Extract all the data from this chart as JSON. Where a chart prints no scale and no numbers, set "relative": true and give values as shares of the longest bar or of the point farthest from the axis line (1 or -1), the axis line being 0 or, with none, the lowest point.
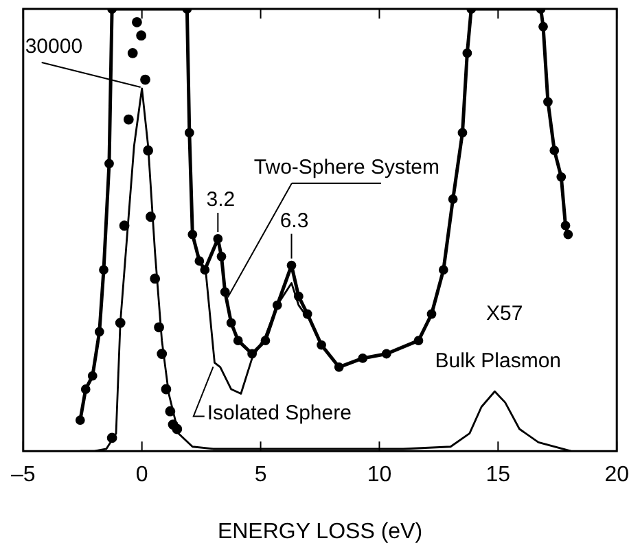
{
  "chart_data": {
    "type": "line",
    "xlabel": "ENERGY LOSS (eV)",
    "xlim": [
      -5,
      20
    ],
    "xticks": [
      {
        "value": -5,
        "label": "–5"
      },
      0,
      5,
      10,
      15,
      20
    ],
    "relative": true,
    "grid": false,
    "legend": false,
    "annotations": [
      {
        "text": "30000",
        "x": 0,
        "y": 0.82
      },
      {
        "text": "3.2",
        "x": 3.2,
        "y": 0.48
      },
      {
        "text": "6.3",
        "x": 6.3,
        "y": 0.42
      },
      "X57",
      {
        "text": "Bulk Plasmon",
        "x": 15,
        "y": 0.135
      }
    ],
    "series": [
      {
        "color": "#000000",
        "marker": "none",
        "x": [
          -2.6,
          -2.0,
          -1.5,
          -1.32,
          -1.09,
          -0.91,
          -0.62,
          -0.33,
          0,
          0.26,
          0.55,
          0.84,
          1.13,
          1.54,
          2.13,
          3,
          5,
          8,
          11,
          13.0,
          13.8,
          14.3,
          14.86,
          15.3,
          15.9,
          16.7,
          18.07
        ],
        "values": [
          0,
          0,
          0.005,
          0.02,
          0.04,
          0.29,
          0.49,
          0.69,
          0.82,
          0.69,
          0.45,
          0.25,
          0.13,
          0.04,
          0.01,
          0.005,
          0.005,
          0.005,
          0.005,
          0.01,
          0.04,
          0.1,
          0.135,
          0.11,
          0.05,
          0.02,
          0
        ]
      },
      {
        "type": "scatter",
        "color": "#000000",
        "marker": "circle",
        "x": [
          -1.26,
          -0.91,
          -0.74,
          -0.56,
          -0.39,
          -0.21,
          -0.03,
          0.14,
          0.26,
          0.37,
          0.55,
          0.72,
          0.84,
          1.02,
          1.19,
          1.31,
          1.48
        ],
        "values": [
          0.03,
          0.29,
          0.51,
          0.75,
          0.9,
          0.97,
          0.94,
          0.84,
          0.68,
          0.53,
          0.39,
          0.28,
          0.22,
          0.14,
          0.09,
          0.06,
          0.05
        ]
      },
      {
        "name": "Two-Sphere System",
        "color": "#000000",
        "marker": "circle",
        "x": [
          -2.6,
          -2.37,
          -2.08,
          -1.79,
          -1.61,
          -1.38,
          -1.26,
          1.9,
          2.0,
          2.13,
          2.42,
          2.65,
          3.2,
          3.35,
          3.5,
          3.76,
          4.05,
          4.64,
          5.2,
          5.7,
          6.3,
          6.6,
          6.97,
          7.56,
          8.3,
          9.3,
          10.3,
          11.65,
          12.2,
          12.7,
          13.1,
          13.5,
          13.7,
          13.87,
          16.8,
          16.9,
          17.1,
          17.37,
          17.66,
          17.84,
          17.95
        ],
        "values": [
          0.07,
          0.14,
          0.17,
          0.27,
          0.41,
          0.65,
          1,
          1,
          0.72,
          0.49,
          0.43,
          0.41,
          0.48,
          0.44,
          0.36,
          0.29,
          0.25,
          0.22,
          0.25,
          0.33,
          0.42,
          0.35,
          0.31,
          0.24,
          0.19,
          0.21,
          0.22,
          0.25,
          0.31,
          0.41,
          0.57,
          0.72,
          0.9,
          1,
          1,
          0.96,
          0.79,
          0.68,
          0.62,
          0.51,
          0.49
        ]
      },
      {
        "name": "Isolated Sphere",
        "color": "#000000",
        "marker": "none",
        "x": [
          2.42,
          2.7,
          3.06,
          3.3,
          3.76,
          4.17,
          4.64,
          5.2,
          5.7,
          6.3,
          6.6,
          7.0
        ],
        "values": [
          0.43,
          0.4,
          0.2,
          0.19,
          0.14,
          0.13,
          0.21,
          0.26,
          0.33,
          0.38,
          0.33,
          0.3
        ]
      }
    ]
  }
}
